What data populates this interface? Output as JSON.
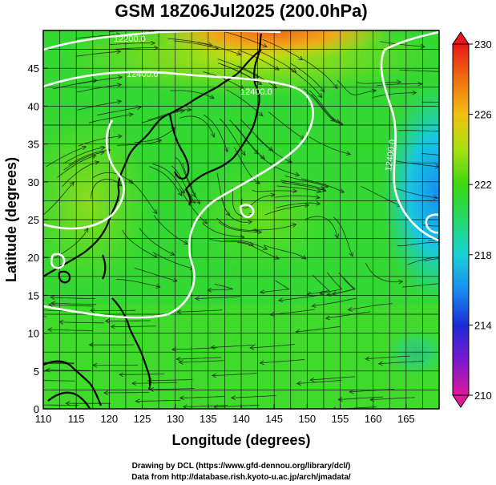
{
  "title": "GSM 18Z06Jul2025 (200.0hPa)",
  "x_axis": {
    "label": "Longitude (degrees)",
    "range": [
      110,
      170
    ],
    "ticks": [
      "110",
      "115",
      "120",
      "125",
      "130",
      "135",
      "140",
      "145",
      "150",
      "155",
      "160",
      "165"
    ]
  },
  "y_axis": {
    "label": "Latitude  (degrees)",
    "range": [
      0,
      50
    ],
    "ticks": [
      "0",
      "5",
      "10",
      "15",
      "20",
      "25",
      "30",
      "35",
      "40",
      "45"
    ]
  },
  "colorbar": {
    "min": 210,
    "max": 230,
    "labels": [
      "210",
      "214",
      "218",
      "222",
      "226",
      "230"
    ],
    "colors": [
      "#e0189a",
      "#7a18d0",
      "#1c2cd8",
      "#1a8cf0",
      "#16d2d6",
      "#24d86a",
      "#3cd814",
      "#a8e010",
      "#f0c010",
      "#f07010",
      "#e81818"
    ]
  },
  "contour_labels": [
    "12200.0",
    "12400.0",
    "12400.0",
    "12400.0"
  ],
  "credits": {
    "line1": "Drawing by DCL (https://www.gfd-dennou.org/library/dcl/)",
    "line2": "Data from http://database.rish.kyoto-u.ac.jp/arch/jmadata/"
  },
  "legend_colors": {
    "field_background": "#34d832",
    "warm_north": "#e88820",
    "cool_east": "#18b8e0",
    "coastline": "#000000",
    "contour": "#ffffff"
  }
}
